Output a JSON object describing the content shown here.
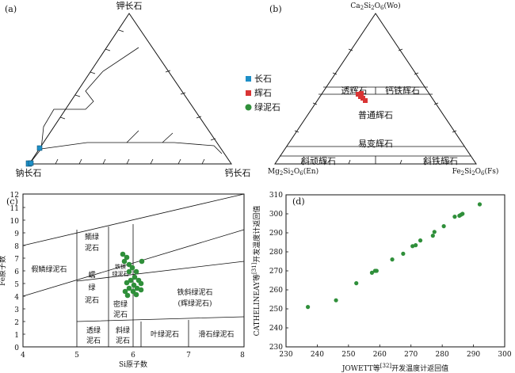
{
  "panel_a": {
    "tag": "(a)",
    "apex_top": "钾长石",
    "apex_left": "钠长石",
    "apex_right": "钙长石",
    "legend": [
      {
        "label": "长石",
        "color": "#1e8fc7",
        "shape": "square"
      },
      {
        "label": "辉石",
        "color": "#d93434",
        "shape": "square"
      },
      {
        "label": "绿泥石",
        "color": "#2f8f3a",
        "shape": "circle"
      }
    ]
  },
  "panel_b": {
    "tag": "(b)",
    "apex_top": {
      "base": "Ca",
      "s1": "2",
      "mid": "Si",
      "s2": "2",
      "mid2": "O",
      "s3": "6",
      "tail": "(Wo)"
    },
    "apex_left": {
      "base": "Mg",
      "s1": "2",
      "mid": "Si",
      "s2": "2",
      "mid2": "O",
      "s3": "6",
      "tail": "(En)"
    },
    "apex_right": {
      "base": "Fe",
      "s1": "2",
      "mid": "Si",
      "s2": "2",
      "mid2": "O",
      "s3": "6",
      "tail": "(Fs)"
    },
    "fields": [
      "透辉石",
      "钙铁辉石",
      "普通辉石",
      "易变辉石",
      "斜顽辉石",
      "斜铁辉石"
    ]
  },
  "panel_c": {
    "tag": "(c)",
    "xlabel": "Si原子数",
    "ylabel": "Fe原子数",
    "xticks": [
      "4",
      "5",
      "6",
      "7",
      "8"
    ],
    "yticks": [
      "0",
      "1",
      "2",
      "3",
      "4",
      "5",
      "6",
      "7",
      "8",
      "9",
      "10",
      "11",
      "12"
    ],
    "fields": {
      "jia": "假鳞绿泥石",
      "ru_1": "蠕",
      "ru_2": "绿",
      "ru_3": "泥石",
      "lin_1": "鲕绿",
      "lin_2": "泥石",
      "tiexie_1": "铁镁",
      "tiexie_2": "绿泥石",
      "mi_1": "密绿",
      "mi_2": "泥石",
      "tiexie_main": "铁斜绿泥石",
      "tiexie_sub": "(辉绿泥石)",
      "tou_1": "透绿",
      "tou_2": "泥石",
      "xie_1": "斜绿",
      "xie_2": "泥石",
      "ye": "叶绿泥石",
      "hua": "滑石绿泥石"
    }
  },
  "panel_d": {
    "tag": "(d)",
    "xlabel": "JOWETT等",
    "xlabel_sup": "[32]",
    "xlabel_tail": "开发温度计返回值",
    "ylabel": "CATHELINEAY等",
    "ylabel_sup": "[31]",
    "ylabel_tail": "开发温度计返回值",
    "xticks": [
      "230",
      "240",
      "250",
      "260",
      "270",
      "280",
      "290",
      "300"
    ],
    "yticks": [
      "230",
      "240",
      "250",
      "260",
      "270",
      "280",
      "290",
      "300",
      "310"
    ]
  },
  "chart_data": {
    "type": "scatter",
    "xlim": [
      230,
      300
    ],
    "ylim": [
      230,
      310
    ],
    "series": [
      {
        "color": "#2f8f3a",
        "x": [
          237,
          246,
          252.5,
          257.5,
          258.5,
          259,
          264,
          267.5,
          270.5,
          271.5,
          273,
          277,
          277.5,
          280.5,
          284,
          285.5,
          286,
          286.5,
          292
        ],
        "y": [
          251,
          254.5,
          263.5,
          269,
          270,
          270,
          276,
          279,
          283,
          283.5,
          286,
          288.5,
          290.5,
          293.5,
          298.5,
          299,
          299.5,
          300,
          305
        ]
      }
    ]
  }
}
